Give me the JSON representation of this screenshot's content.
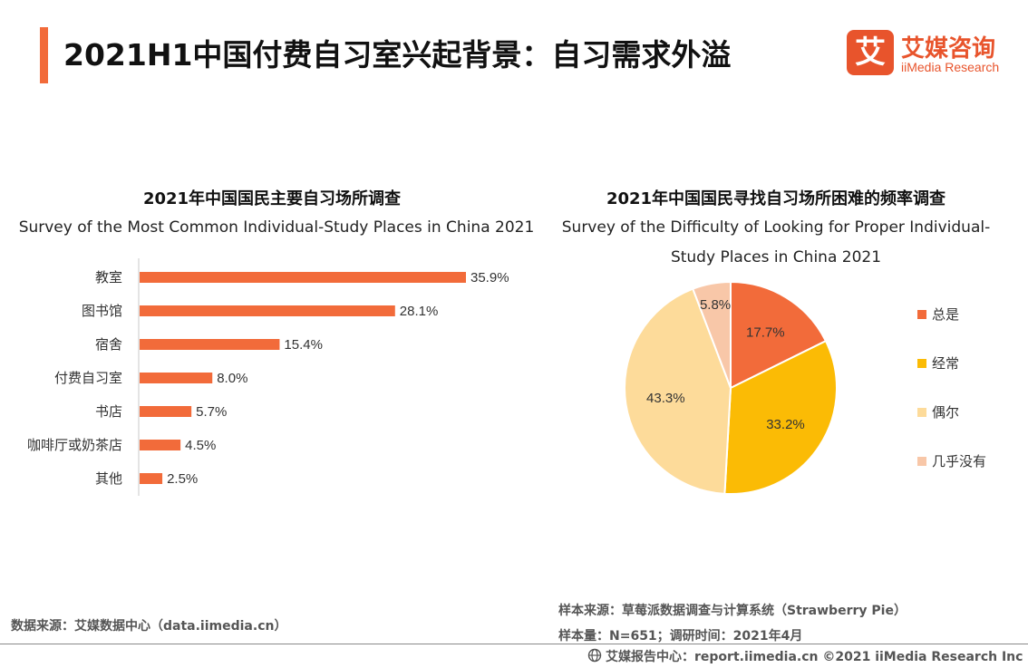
{
  "header": {
    "title": "2021H1中国付费自习室兴起背景：自习需求外溢",
    "brand_mark": "艾",
    "brand_cn": "艾媒咨询",
    "brand_en": "iiMedia Research",
    "accent_color": "#f26b3a"
  },
  "chart_data": [
    {
      "type": "bar",
      "orientation": "horizontal",
      "title": "2021年中国国民主要自习场所调查",
      "subtitle": "Survey of the Most Common Individual-Study Places in China 2021",
      "categories": [
        "教室",
        "图书馆",
        "宿舍",
        "付费自习室",
        "书店",
        "咖啡厅或奶茶店",
        "其他"
      ],
      "values": [
        35.9,
        28.1,
        15.4,
        8.0,
        5.7,
        4.5,
        2.5
      ],
      "value_labels": [
        "35.9%",
        "28.1%",
        "15.4%",
        "8.0%",
        "5.7%",
        "4.5%",
        "2.5%"
      ],
      "unit": "%",
      "xlim": [
        0,
        40
      ],
      "color": "#f26b3a",
      "grid": false
    },
    {
      "type": "pie",
      "title": "2021年中国国民寻找自习场所困难的频率调查",
      "subtitle_line1": "Survey of the Difficulty of Looking for Proper Individual-",
      "subtitle_line2": "Study Places in China 2021",
      "categories": [
        "总是",
        "经常",
        "偶尔",
        "几乎没有"
      ],
      "values": [
        17.7,
        33.2,
        43.3,
        5.8
      ],
      "value_labels": [
        "17.7%",
        "33.2%",
        "43.3%",
        "5.8%"
      ],
      "colors": [
        "#f26b3a",
        "#fbbb05",
        "#fddb9a",
        "#f8c7a8"
      ],
      "legend_position": "right"
    }
  ],
  "sources": {
    "left": "数据来源：艾媒数据中心（data.iimedia.cn）",
    "right_line1": "样本来源：草莓派数据调查与计算系统（Strawberry Pie）",
    "right_line2": "样本量：N=651；调研时间：2021年4月"
  },
  "footer": {
    "icon": "globe-icon",
    "text": "艾媒报告中心：report.iimedia.cn   ©2021  iiMedia Research  Inc"
  }
}
